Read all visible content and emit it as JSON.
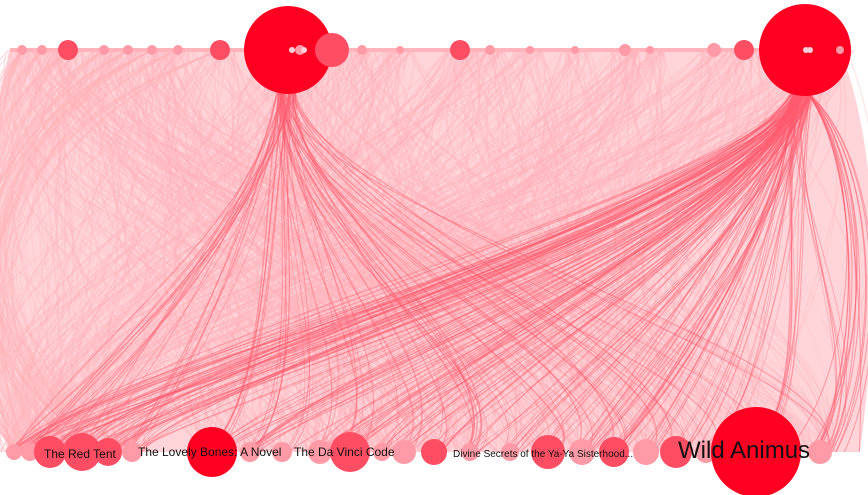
{
  "graph": {
    "type": "bipartite-arc-network",
    "colors": {
      "node_strong": "#ff0022",
      "node_medium": "#ff4d63",
      "node_light": "#ff9aa6",
      "edge_light": "#ffb3ba",
      "edge_strong": "#ff5a6e",
      "label": "#111111"
    },
    "labels": [
      {
        "id": "red-tent",
        "text": "The Red Tent"
      },
      {
        "id": "lovely-bones",
        "text": "The Lovely Bones: A Novel"
      },
      {
        "id": "da-vinci-code",
        "text": "The Da Vinci Code"
      },
      {
        "id": "ya-ya",
        "text": "Divine Secrets of the Ya-Ya Sisterhood..."
      },
      {
        "id": "wild-animus",
        "text": "Wild Animus"
      }
    ]
  }
}
